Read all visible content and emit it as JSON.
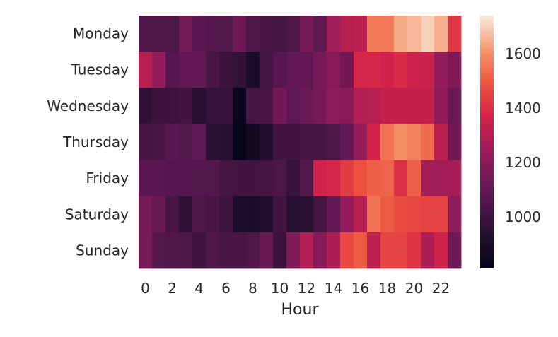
{
  "chart_data": {
    "type": "heatmap",
    "title": "",
    "xlabel": "Hour",
    "ylabel": "",
    "rows": [
      "Monday",
      "Tuesday",
      "Wednesday",
      "Thursday",
      "Friday",
      "Saturday",
      "Sunday"
    ],
    "columns": [
      0,
      1,
      2,
      3,
      4,
      5,
      6,
      7,
      8,
      9,
      10,
      11,
      12,
      13,
      14,
      15,
      16,
      17,
      18,
      19,
      20,
      21,
      22,
      23
    ],
    "x_tick_labels": [
      "0",
      "2",
      "4",
      "6",
      "8",
      "10",
      "12",
      "14",
      "16",
      "18",
      "20",
      "22"
    ],
    "x_tick_values": [
      0,
      2,
      4,
      6,
      8,
      10,
      12,
      14,
      16,
      18,
      20,
      22
    ],
    "colorbar": {
      "min": 810,
      "max": 1740,
      "tick_labels": [
        "1000",
        "1200",
        "1400",
        "1600"
      ],
      "tick_values": [
        1000,
        1200,
        1400,
        1600
      ],
      "colormap": "rocket"
    },
    "values": [
      [
        1050,
        1050,
        1040,
        1150,
        1080,
        1060,
        1060,
        1130,
        1050,
        1030,
        1020,
        1040,
        1150,
        1090,
        1250,
        1300,
        1310,
        1560,
        1560,
        1640,
        1660,
        1700,
        1650,
        1420
      ],
      [
        1300,
        1220,
        1070,
        1100,
        1100,
        1030,
        990,
        970,
        890,
        1020,
        1070,
        1100,
        1100,
        1150,
        1190,
        1140,
        1380,
        1380,
        1360,
        1390,
        1350,
        1340,
        1220,
        1170
      ],
      [
        960,
        990,
        1000,
        1010,
        940,
        980,
        980,
        830,
        1020,
        1030,
        1140,
        1090,
        1120,
        1150,
        1200,
        1190,
        1290,
        1300,
        1330,
        1330,
        1330,
        1330,
        1210,
        1120
      ],
      [
        1020,
        1030,
        1080,
        1060,
        1090,
        950,
        940,
        820,
        860,
        920,
        1010,
        1010,
        1020,
        1020,
        1040,
        1100,
        1220,
        1370,
        1550,
        1600,
        1570,
        1530,
        1310,
        1140
      ],
      [
        1080,
        1080,
        1070,
        1070,
        1060,
        1060,
        1020,
        1010,
        1010,
        1020,
        1040,
        980,
        1060,
        1360,
        1380,
        1430,
        1480,
        1510,
        1520,
        1400,
        1510,
        1250,
        1250,
        1260
      ],
      [
        1150,
        1110,
        1030,
        960,
        1040,
        1030,
        1000,
        900,
        890,
        920,
        1010,
        930,
        950,
        1020,
        1100,
        1230,
        1300,
        1550,
        1500,
        1470,
        1460,
        1450,
        1450,
        1200
      ],
      [
        1150,
        1060,
        1050,
        1040,
        1000,
        1050,
        1030,
        1030,
        1050,
        1110,
        990,
        1170,
        1290,
        1190,
        1280,
        1460,
        1500,
        1320,
        1450,
        1450,
        1410,
        1280,
        1350,
        1130
      ]
    ]
  }
}
